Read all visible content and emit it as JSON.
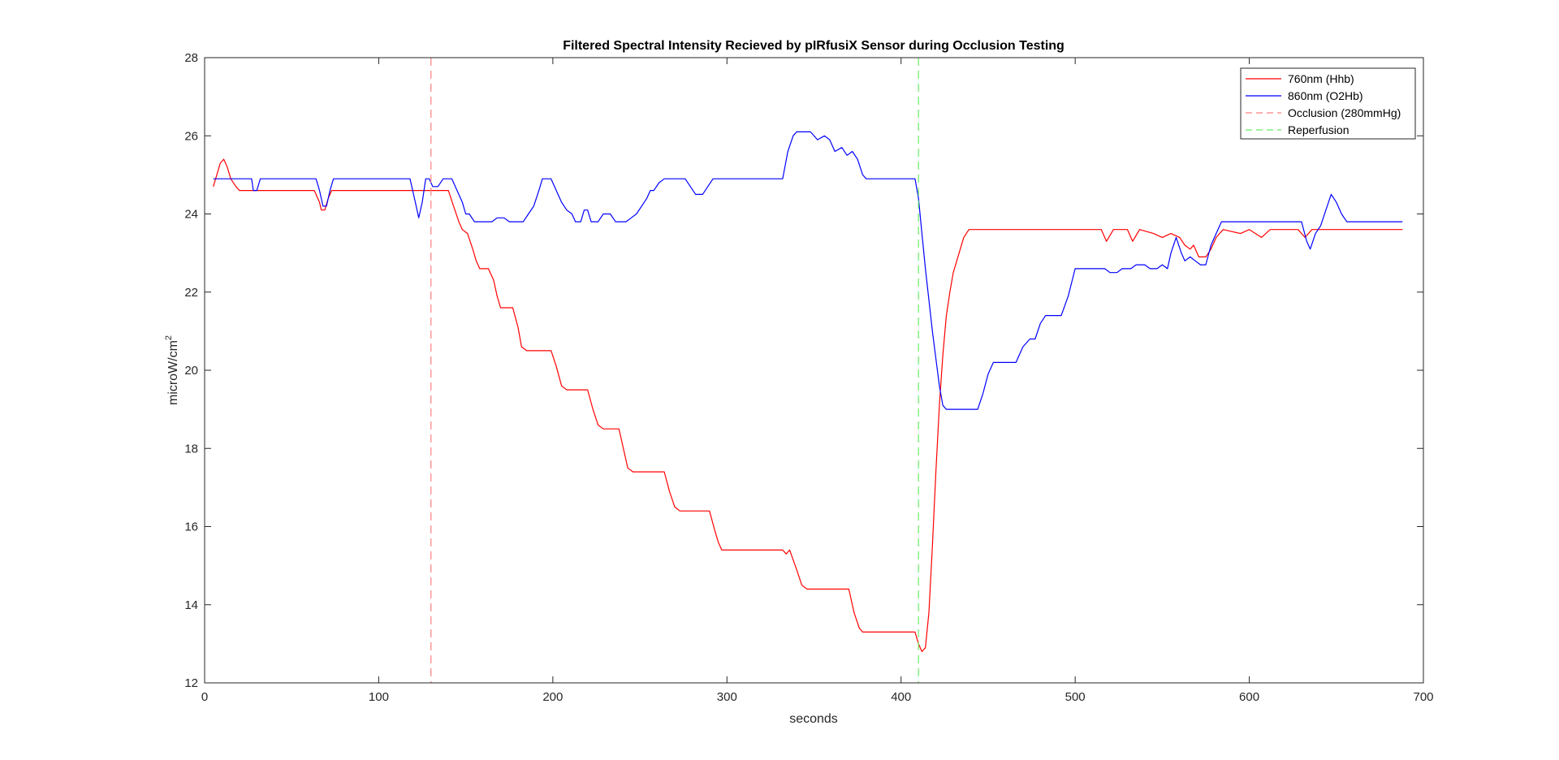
{
  "figure": {
    "background": "#ffffff"
  },
  "chart_data": {
    "type": "line",
    "title": "Filtered Spectral Intensity Recieved by pIRfusiX Sensor during Occlusion Testing",
    "xlabel": "seconds",
    "ylabel_base": "microW/cm",
    "ylabel_superscript": "2",
    "xlim": [
      0,
      700
    ],
    "ylim": [
      12,
      28
    ],
    "xticks": [
      0,
      100,
      200,
      300,
      400,
      500,
      600,
      700
    ],
    "yticks": [
      12,
      14,
      16,
      18,
      20,
      22,
      24,
      26,
      28
    ],
    "grid": false,
    "legend_position": "top-right",
    "series": [
      {
        "name": "760nm (Hhb)",
        "color": "#ff0000",
        "style": "solid",
        "points": [
          [
            5,
            24.7
          ],
          [
            7,
            25.0
          ],
          [
            9,
            25.3
          ],
          [
            11,
            25.4
          ],
          [
            13,
            25.2
          ],
          [
            15,
            24.9
          ],
          [
            18,
            24.7
          ],
          [
            20,
            24.6
          ],
          [
            63,
            24.6
          ],
          [
            66,
            24.3
          ],
          [
            67,
            24.1
          ],
          [
            69,
            24.1
          ],
          [
            71,
            24.4
          ],
          [
            73,
            24.6
          ],
          [
            140,
            24.6
          ],
          [
            143,
            24.2
          ],
          [
            146,
            23.8
          ],
          [
            148,
            23.6
          ],
          [
            151,
            23.5
          ],
          [
            154,
            23.1
          ],
          [
            156,
            22.8
          ],
          [
            158,
            22.6
          ],
          [
            163,
            22.6
          ],
          [
            166,
            22.3
          ],
          [
            168,
            21.9
          ],
          [
            170,
            21.6
          ],
          [
            177,
            21.6
          ],
          [
            180,
            21.1
          ],
          [
            182,
            20.6
          ],
          [
            185,
            20.5
          ],
          [
            199,
            20.5
          ],
          [
            202,
            20.1
          ],
          [
            205,
            19.6
          ],
          [
            208,
            19.5
          ],
          [
            220,
            19.5
          ],
          [
            223,
            19.0
          ],
          [
            226,
            18.6
          ],
          [
            229,
            18.5
          ],
          [
            238,
            18.5
          ],
          [
            241,
            17.9
          ],
          [
            243,
            17.5
          ],
          [
            246,
            17.4
          ],
          [
            264,
            17.4
          ],
          [
            267,
            16.9
          ],
          [
            270,
            16.5
          ],
          [
            273,
            16.4
          ],
          [
            290,
            16.4
          ],
          [
            293,
            15.9
          ],
          [
            295,
            15.6
          ],
          [
            297,
            15.4
          ],
          [
            332,
            15.4
          ],
          [
            334,
            15.3
          ],
          [
            336,
            15.4
          ],
          [
            340,
            14.9
          ],
          [
            343,
            14.5
          ],
          [
            346,
            14.4
          ],
          [
            370,
            14.4
          ],
          [
            373,
            13.8
          ],
          [
            376,
            13.4
          ],
          [
            378,
            13.3
          ],
          [
            408,
            13.3
          ],
          [
            410,
            13.0
          ],
          [
            412,
            12.8
          ],
          [
            414,
            12.9
          ],
          [
            416,
            13.8
          ],
          [
            418,
            15.5
          ],
          [
            420,
            17.4
          ],
          [
            422,
            19.1
          ],
          [
            424,
            20.4
          ],
          [
            426,
            21.4
          ],
          [
            428,
            22.0
          ],
          [
            430,
            22.5
          ],
          [
            432,
            22.8
          ],
          [
            434,
            23.1
          ],
          [
            436,
            23.4
          ],
          [
            439,
            23.6
          ],
          [
            515,
            23.6
          ],
          [
            518,
            23.3
          ],
          [
            522,
            23.6
          ],
          [
            530,
            23.6
          ],
          [
            533,
            23.3
          ],
          [
            537,
            23.6
          ],
          [
            545,
            23.5
          ],
          [
            550,
            23.4
          ],
          [
            555,
            23.5
          ],
          [
            560,
            23.4
          ],
          [
            563,
            23.2
          ],
          [
            566,
            23.1
          ],
          [
            568,
            23.2
          ],
          [
            571,
            22.9
          ],
          [
            575,
            22.9
          ],
          [
            578,
            23.1
          ],
          [
            581,
            23.4
          ],
          [
            585,
            23.6
          ],
          [
            595,
            23.5
          ],
          [
            600,
            23.6
          ],
          [
            607,
            23.4
          ],
          [
            612,
            23.6
          ],
          [
            628,
            23.6
          ],
          [
            632,
            23.4
          ],
          [
            636,
            23.6
          ],
          [
            688,
            23.6
          ]
        ]
      },
      {
        "name": "860nm (O2Hb)",
        "color": "#0000ff",
        "style": "solid",
        "points": [
          [
            5,
            24.9
          ],
          [
            27,
            24.9
          ],
          [
            28,
            24.6
          ],
          [
            30,
            24.6
          ],
          [
            32,
            24.9
          ],
          [
            64,
            24.9
          ],
          [
            66,
            24.6
          ],
          [
            68,
            24.2
          ],
          [
            70,
            24.2
          ],
          [
            72,
            24.6
          ],
          [
            74,
            24.9
          ],
          [
            118,
            24.9
          ],
          [
            121,
            24.3
          ],
          [
            123,
            23.9
          ],
          [
            125,
            24.3
          ],
          [
            127,
            24.9
          ],
          [
            129,
            24.9
          ],
          [
            131,
            24.7
          ],
          [
            134,
            24.7
          ],
          [
            137,
            24.9
          ],
          [
            142,
            24.9
          ],
          [
            145,
            24.6
          ],
          [
            148,
            24.3
          ],
          [
            150,
            24.0
          ],
          [
            152,
            24.0
          ],
          [
            155,
            23.8
          ],
          [
            165,
            23.8
          ],
          [
            168,
            23.9
          ],
          [
            172,
            23.9
          ],
          [
            175,
            23.8
          ],
          [
            183,
            23.8
          ],
          [
            186,
            24.0
          ],
          [
            189,
            24.2
          ],
          [
            192,
            24.6
          ],
          [
            194,
            24.9
          ],
          [
            199,
            24.9
          ],
          [
            202,
            24.6
          ],
          [
            205,
            24.3
          ],
          [
            208,
            24.1
          ],
          [
            211,
            24.0
          ],
          [
            213,
            23.8
          ],
          [
            216,
            23.8
          ],
          [
            218,
            24.1
          ],
          [
            220,
            24.1
          ],
          [
            222,
            23.8
          ],
          [
            226,
            23.8
          ],
          [
            229,
            24.0
          ],
          [
            233,
            24.0
          ],
          [
            236,
            23.8
          ],
          [
            242,
            23.8
          ],
          [
            245,
            23.9
          ],
          [
            248,
            24.0
          ],
          [
            251,
            24.2
          ],
          [
            254,
            24.4
          ],
          [
            256,
            24.6
          ],
          [
            258,
            24.6
          ],
          [
            261,
            24.8
          ],
          [
            264,
            24.9
          ],
          [
            276,
            24.9
          ],
          [
            279,
            24.7
          ],
          [
            282,
            24.5
          ],
          [
            286,
            24.5
          ],
          [
            289,
            24.7
          ],
          [
            292,
            24.9
          ],
          [
            332,
            24.9
          ],
          [
            335,
            25.6
          ],
          [
            338,
            26.0
          ],
          [
            340,
            26.1
          ],
          [
            348,
            26.1
          ],
          [
            352,
            25.9
          ],
          [
            356,
            26.0
          ],
          [
            359,
            25.9
          ],
          [
            362,
            25.6
          ],
          [
            366,
            25.7
          ],
          [
            369,
            25.5
          ],
          [
            372,
            25.6
          ],
          [
            375,
            25.4
          ],
          [
            378,
            25.0
          ],
          [
            380,
            24.9
          ],
          [
            408,
            24.9
          ],
          [
            410,
            24.4
          ],
          [
            412,
            23.5
          ],
          [
            414,
            22.6
          ],
          [
            416,
            21.8
          ],
          [
            418,
            21.0
          ],
          [
            420,
            20.3
          ],
          [
            422,
            19.6
          ],
          [
            424,
            19.1
          ],
          [
            426,
            19.0
          ],
          [
            444,
            19.0
          ],
          [
            447,
            19.4
          ],
          [
            450,
            19.9
          ],
          [
            453,
            20.2
          ],
          [
            466,
            20.2
          ],
          [
            470,
            20.6
          ],
          [
            474,
            20.8
          ],
          [
            477,
            20.8
          ],
          [
            480,
            21.2
          ],
          [
            483,
            21.4
          ],
          [
            492,
            21.4
          ],
          [
            496,
            21.9
          ],
          [
            500,
            22.6
          ],
          [
            517,
            22.6
          ],
          [
            520,
            22.5
          ],
          [
            524,
            22.5
          ],
          [
            527,
            22.6
          ],
          [
            532,
            22.6
          ],
          [
            535,
            22.7
          ],
          [
            540,
            22.7
          ],
          [
            543,
            22.6
          ],
          [
            547,
            22.6
          ],
          [
            550,
            22.7
          ],
          [
            553,
            22.6
          ],
          [
            555,
            23.0
          ],
          [
            558,
            23.4
          ],
          [
            561,
            23.0
          ],
          [
            563,
            22.8
          ],
          [
            566,
            22.9
          ],
          [
            569,
            22.8
          ],
          [
            572,
            22.7
          ],
          [
            575,
            22.7
          ],
          [
            578,
            23.2
          ],
          [
            581,
            23.5
          ],
          [
            584,
            23.8
          ],
          [
            630,
            23.8
          ],
          [
            633,
            23.3
          ],
          [
            635,
            23.1
          ],
          [
            638,
            23.5
          ],
          [
            641,
            23.7
          ],
          [
            644,
            24.1
          ],
          [
            647,
            24.5
          ],
          [
            650,
            24.3
          ],
          [
            653,
            24.0
          ],
          [
            656,
            23.8
          ],
          [
            688,
            23.8
          ]
        ]
      },
      {
        "name": "Occlusion (280mmHg)",
        "color": "#ff8080",
        "style": "dashed",
        "vertical_x": 130
      },
      {
        "name": "Reperfusion",
        "color": "#66ee66",
        "style": "dashed",
        "vertical_x": 410
      }
    ]
  }
}
